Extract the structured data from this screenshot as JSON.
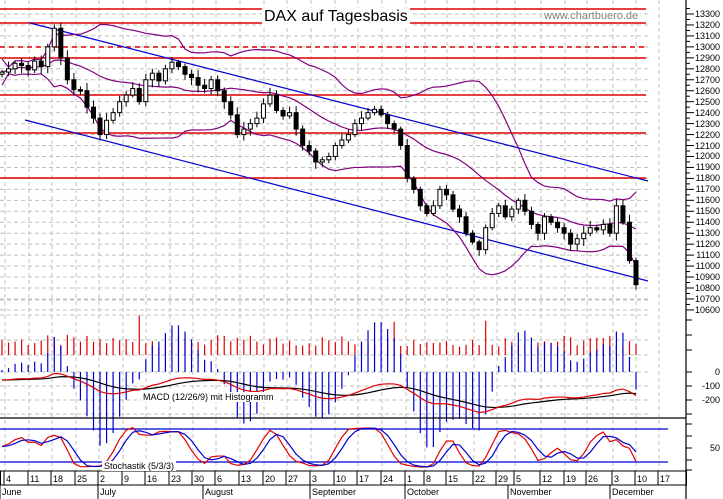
{
  "header": {
    "title": "DAX auf Tagesbasis",
    "watermark": "www.chartbuero.de"
  },
  "panels": {
    "macd_label": "MACD (12/26/9) mit Histogramm",
    "stoch_label": "Stochastik (5/3/3)"
  },
  "colors": {
    "candle": "#000000",
    "resistance": "#e00000",
    "trend": "#0000d0",
    "bollinger": "#800080",
    "grid": "#c0c0c0",
    "volume": "#e00000",
    "macd_line": "#000000",
    "signal_line": "#e00000",
    "histogram": "#0000d0",
    "stoch_k": "#e00000",
    "stoch_d": "#0000d0"
  },
  "axis": {
    "price_ticks": [
      "13300",
      "13200",
      "13100",
      "13000",
      "12900",
      "12800",
      "12700",
      "12600",
      "12500",
      "12400",
      "12300",
      "12200",
      "12100",
      "12000",
      "11900",
      "11800",
      "11700",
      "11600",
      "11500",
      "11400",
      "11300",
      "11200",
      "11100",
      "11000",
      "10900",
      "10800",
      "10700",
      "10600"
    ],
    "macd_ticks": [
      "0",
      "-100",
      "-200"
    ],
    "stoch_ticks": [
      "50"
    ],
    "dates": [
      "4",
      "11",
      "18",
      "25",
      "2",
      "9",
      "16",
      "23",
      "30",
      "6",
      "13",
      "20",
      "27",
      "3",
      "10",
      "17",
      "24",
      "1",
      "8",
      "15",
      "22",
      "29",
      "5",
      "12",
      "19",
      "26",
      "3",
      "10",
      "17"
    ],
    "months": [
      "June",
      "July",
      "August",
      "September",
      "October",
      "November",
      "December"
    ]
  },
  "chart_data": {
    "type": "candlestick",
    "title": "DAX auf Tagesbasis",
    "xlabel": "",
    "ylabel": "",
    "ylim": [
      10600,
      13350
    ],
    "x_range": "June 2018 – December 2018 (weekly ticks)",
    "horizontal_levels": [
      13350,
      13220,
      13000,
      12900,
      12560,
      12210,
      11800
    ],
    "dashed_levels": [
      13000
    ],
    "trend_channel": {
      "upper": {
        "start": [
          0,
          13230
        ],
        "end": [
          648,
          11985
        ]
      },
      "lower": {
        "start": [
          25,
          12300
        ],
        "end": [
          648,
          11100
        ]
      }
    },
    "closes_approx": [
      12770,
      12800,
      12850,
      12830,
      12790,
      12870,
      12820,
      13000,
      13170,
      12900,
      12700,
      12610,
      12600,
      12450,
      12350,
      12200,
      12330,
      12400,
      12500,
      12560,
      12620,
      12500,
      12700,
      12760,
      12690,
      12800,
      12860,
      12820,
      12750,
      12720,
      12650,
      12620,
      12700,
      12600,
      12500,
      12380,
      12200,
      12250,
      12300,
      12350,
      12480,
      12560,
      12420,
      12370,
      12400,
      12250,
      12100,
      12050,
      11950,
      11970,
      12000,
      12100,
      12150,
      12200,
      12300,
      12350,
      12400,
      12430,
      12380,
      12300,
      12250,
      12100,
      11800,
      11700,
      11550,
      11480,
      11550,
      11700,
      11650,
      11520,
      11450,
      11300,
      11220,
      11150,
      11350,
      11480,
      11550,
      11450,
      11520,
      11600,
      11500,
      11380,
      11300,
      11450,
      11400,
      11350,
      11300,
      11200,
      11250,
      11300,
      11350,
      11330,
      11380,
      11300,
      11550,
      11400,
      11050,
      10830
    ],
    "series": [
      {
        "name": "Volume",
        "type": "bar"
      },
      {
        "name": "MACD (12/26/9)",
        "type": "line",
        "ticks": [
          0,
          -100,
          -200
        ]
      },
      {
        "name": "Signal",
        "type": "line"
      },
      {
        "name": "Histogramm",
        "type": "bar"
      },
      {
        "name": "Stochastik %K (5/3/3)",
        "type": "line",
        "levels": [
          80,
          20
        ]
      },
      {
        "name": "Stochastik %D",
        "type": "line"
      }
    ]
  }
}
